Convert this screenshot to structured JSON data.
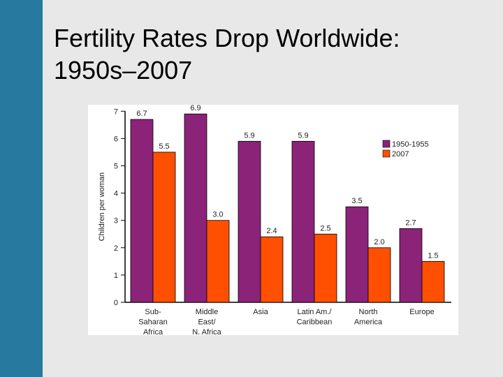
{
  "slide": {
    "title_line1": "Fertility Rates Drop Worldwide:",
    "title_line2": "1950s–2007",
    "sidebar_color": "#2779a0"
  },
  "chart_data": {
    "type": "bar",
    "title": "",
    "xlabel": "",
    "ylabel": "Children per woman",
    "ylim": [
      0,
      7
    ],
    "yticks": [
      0,
      1,
      2,
      3,
      4,
      5,
      6,
      7
    ],
    "grid": false,
    "legend_position": "top-right",
    "categories": [
      [
        "Sub-",
        "Saharan",
        "Africa"
      ],
      [
        "Middle",
        "East/",
        "N. Africa"
      ],
      [
        "Asia"
      ],
      [
        "Latin Am./",
        "Caribbean"
      ],
      [
        "North",
        "America"
      ],
      [
        "Europe"
      ]
    ],
    "series": [
      {
        "name": "1950-1955",
        "color": "#8b2379",
        "values": [
          6.7,
          6.9,
          5.9,
          5.9,
          3.5,
          2.7
        ],
        "labels": [
          "6.7",
          "6.9",
          "5.9",
          "5.9",
          "3.5",
          "2.7"
        ]
      },
      {
        "name": "2007",
        "color": "#ff4f00",
        "values": [
          5.5,
          3.0,
          2.4,
          2.5,
          2.0,
          1.5
        ],
        "labels": [
          "5.5",
          "3.0",
          "2.4",
          "2.5",
          "2.0",
          "1.5"
        ]
      }
    ]
  }
}
